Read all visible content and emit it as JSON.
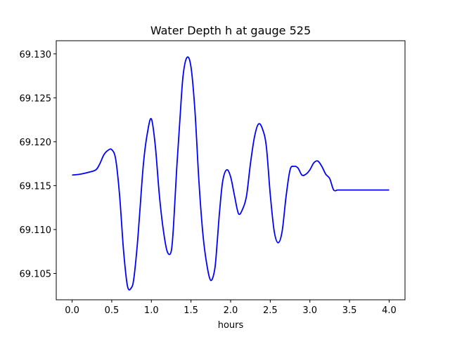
{
  "chart_data": {
    "type": "line",
    "title": "Water Depth h at gauge 525",
    "xlabel": "hours",
    "ylabel": "",
    "xlim": [
      -0.2,
      4.2
    ],
    "ylim": [
      69.102,
      69.1315
    ],
    "xticks": [
      0.0,
      0.5,
      1.0,
      1.5,
      2.0,
      2.5,
      3.0,
      3.5,
      4.0
    ],
    "xtick_labels": [
      "0.0",
      "0.5",
      "1.0",
      "1.5",
      "2.0",
      "2.5",
      "3.0",
      "3.5",
      "4.0"
    ],
    "yticks": [
      69.105,
      69.11,
      69.115,
      69.12,
      69.125,
      69.13
    ],
    "ytick_labels": [
      "69.105",
      "69.110",
      "69.115",
      "69.120",
      "69.125",
      "69.130"
    ],
    "grid": false,
    "series": [
      {
        "color": "#0000ff",
        "x": [
          0.0,
          0.1,
          0.2,
          0.3,
          0.35,
          0.4,
          0.45,
          0.5,
          0.55,
          0.6,
          0.65,
          0.7,
          0.75,
          0.78,
          0.82,
          0.85,
          0.9,
          0.95,
          1.0,
          1.05,
          1.1,
          1.15,
          1.2,
          1.25,
          1.28,
          1.32,
          1.36,
          1.4,
          1.45,
          1.5,
          1.55,
          1.6,
          1.65,
          1.7,
          1.75,
          1.8,
          1.83,
          1.86,
          1.9,
          1.95,
          2.0,
          2.05,
          2.1,
          2.15,
          2.2,
          2.25,
          2.3,
          2.35,
          2.4,
          2.45,
          2.5,
          2.55,
          2.6,
          2.65,
          2.7,
          2.75,
          2.8,
          2.85,
          2.9,
          2.95,
          3.0,
          3.05,
          3.1,
          3.15,
          3.2,
          3.25,
          3.3,
          3.35,
          3.4,
          3.45,
          3.5,
          3.55,
          3.6,
          3.65,
          3.7,
          3.75,
          3.8,
          3.85,
          3.9,
          3.95,
          4.0
        ],
        "y": [
          69.1162,
          69.1163,
          69.1165,
          69.1168,
          69.1175,
          69.1185,
          69.119,
          69.1191,
          69.118,
          69.1138,
          69.1075,
          69.1035,
          69.1034,
          69.1045,
          69.108,
          69.1115,
          69.1175,
          69.121,
          69.1226,
          69.1195,
          69.114,
          69.11,
          69.1075,
          69.1075,
          69.1105,
          69.117,
          69.1225,
          69.1275,
          69.1296,
          69.1285,
          69.1235,
          69.1155,
          69.1095,
          69.106,
          69.1042,
          69.1055,
          69.1085,
          69.112,
          69.1155,
          69.1168,
          69.116,
          69.1138,
          69.1118,
          69.1123,
          69.1138,
          69.1175,
          69.1205,
          69.122,
          69.1215,
          69.1195,
          69.114,
          69.1098,
          69.1085,
          69.1098,
          69.1138,
          69.1168,
          69.1172,
          69.117,
          69.1162,
          69.1163,
          69.1168,
          69.1176,
          69.1178,
          69.1172,
          69.1163,
          69.1158,
          69.1145,
          69.1145,
          69.1145,
          69.1145,
          69.1145,
          69.1145,
          69.1145,
          69.1145,
          69.1145,
          69.1145,
          69.1145,
          69.1145,
          69.1145,
          69.1145,
          69.1145
        ]
      }
    ]
  }
}
